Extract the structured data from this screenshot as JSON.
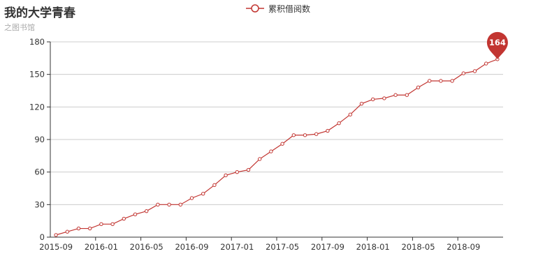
{
  "title": "我的大学青春",
  "subtitle": "之图书馆",
  "colors": {
    "series": "#c23531",
    "grid": "#cccccc",
    "axis": "#333333",
    "text": "#333333"
  },
  "chart_data": {
    "type": "line",
    "title": "我的大学青春",
    "subtitle": "之图书馆",
    "legend": {
      "position": "top-center"
    },
    "grid": true,
    "ylim": [
      0,
      180
    ],
    "yticks": [
      0,
      30,
      60,
      90,
      120,
      150,
      180
    ],
    "x": [
      "2015-09",
      "2015-10",
      "2015-11",
      "2015-12",
      "2016-01",
      "2016-02",
      "2016-03",
      "2016-04",
      "2016-05",
      "2016-06",
      "2016-07",
      "2016-08",
      "2016-09",
      "2016-10",
      "2016-11",
      "2016-12",
      "2017-01",
      "2017-02",
      "2017-03",
      "2017-04",
      "2017-05",
      "2017-06",
      "2017-07",
      "2017-08",
      "2017-09",
      "2017-10",
      "2017-11",
      "2017-12",
      "2018-01",
      "2018-02",
      "2018-03",
      "2018-04",
      "2018-05",
      "2018-06",
      "2018-07",
      "2018-08",
      "2018-09",
      "2018-10",
      "2018-11",
      "2018-12"
    ],
    "xtick_labels": [
      "2015-09",
      "2016-01",
      "2016-05",
      "2016-09",
      "2017-01",
      "2017-05",
      "2017-09",
      "2018-01",
      "2018-05",
      "2018-09"
    ],
    "series": [
      {
        "name": "累积借阅数",
        "values": [
          2,
          5,
          8,
          8,
          12,
          12,
          17,
          21,
          24,
          30,
          30,
          30,
          36,
          40,
          48,
          57,
          60,
          62,
          72,
          79,
          86,
          94,
          94,
          95,
          98,
          105,
          113,
          123,
          127,
          128,
          131,
          131,
          138,
          144,
          144,
          144,
          151,
          153,
          160,
          164
        ],
        "max_marker": "164"
      }
    ]
  }
}
